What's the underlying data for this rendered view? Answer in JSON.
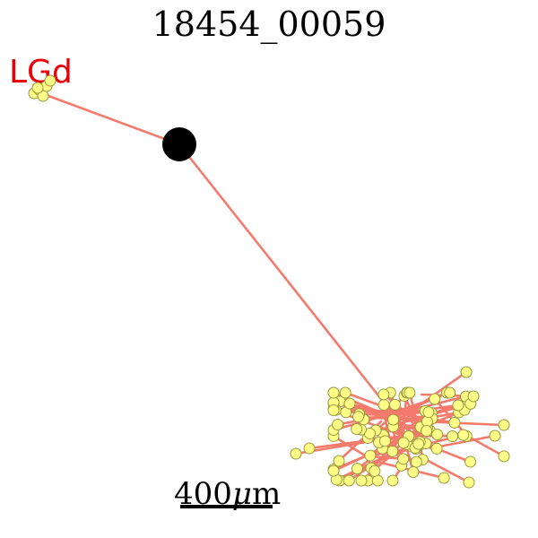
{
  "title": "18454_00059",
  "region_label": "LGd",
  "scale_bar": {
    "value": "400",
    "unit_symbol": "μ",
    "unit_suffix": "m"
  },
  "colors": {
    "background": "#ffffff",
    "title": "#000000",
    "region_label": "#e8000b",
    "axon_line": "#f47a6c",
    "terminal_fill": "#ffff88",
    "terminal_stroke": "#9a9a40",
    "soma": "#000000",
    "scale_bar": "#000000"
  }
}
